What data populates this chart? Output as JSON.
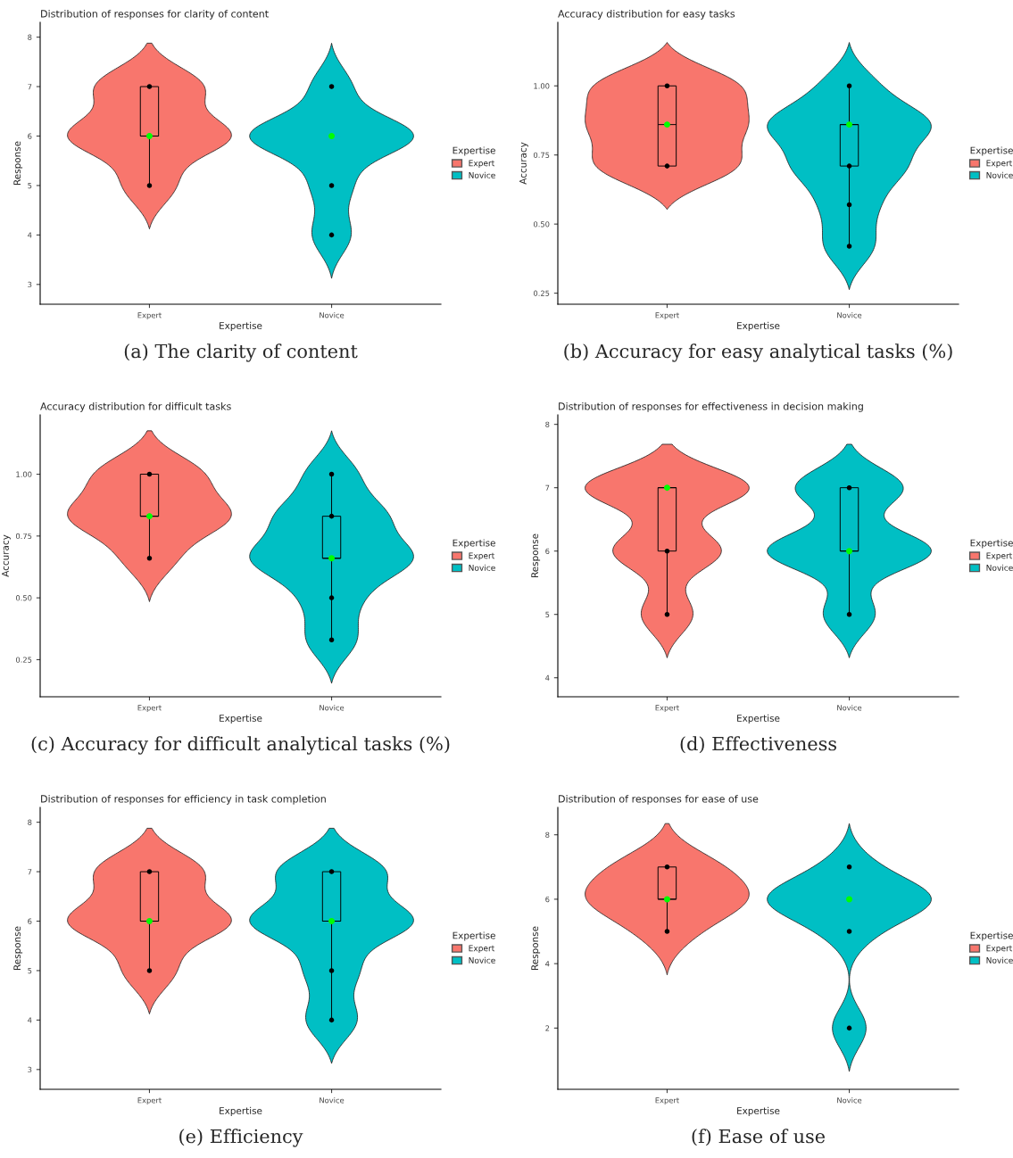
{
  "chart_data": [
    {
      "type": "box",
      "title": "Distribution of responses for clarity of content",
      "xlabel": "Expertise",
      "ylabel": "Response",
      "legend_title": "Expertise",
      "legend": "right",
      "categories": [
        "Expert",
        "Novice"
      ],
      "ylim": [
        2.6,
        8.3
      ],
      "yticks": [
        3,
        4,
        5,
        6,
        7,
        8
      ],
      "series": [
        {
          "name": "Expert",
          "color": "#f8766d",
          "boxes": [
            {
              "low": 5,
              "q1": 6,
              "median": 6,
              "q3": 7,
              "high": 7,
              "mean": 6
            },
            null
          ]
        },
        {
          "name": "Novice",
          "color": "#00bfc4",
          "boxes": [
            null,
            {
              "low": 6,
              "q1": 6,
              "median": 6,
              "q3": 6,
              "high": 6,
              "mean": 6
            }
          ]
        },
        {
          "type": "scatter",
          "color": "#000000",
          "x": [
            "Expert",
            "Expert",
            "Novice",
            "Novice",
            "Novice"
          ],
          "values": [
            5,
            7,
            4,
            5,
            7
          ]
        }
      ],
      "annotations": [
        "(a) The clarity of content"
      ]
    },
    {
      "type": "box",
      "title": "Accuracy distribution for easy tasks",
      "xlabel": "Expertise",
      "ylabel": "Accuracy",
      "legend_title": "Expertise",
      "legend": "right",
      "categories": [
        "Expert",
        "Novice"
      ],
      "ylim": [
        0.21,
        1.23
      ],
      "yticks": [
        {
          "value": 0.25,
          "label": "0.25"
        },
        {
          "value": 0.5,
          "label": "0.50"
        },
        {
          "value": 0.75,
          "label": "0.75"
        },
        {
          "value": 1.0,
          "label": "1.00"
        }
      ],
      "series": [
        {
          "name": "Expert",
          "color": "#f8766d",
          "boxes": [
            {
              "low": 0.71,
              "q1": 0.71,
              "median": 0.86,
              "q3": 1.0,
              "high": 1.0,
              "mean": 0.86
            },
            null
          ]
        },
        {
          "name": "Novice",
          "color": "#00bfc4",
          "boxes": [
            null,
            {
              "low": 0.42,
              "q1": 0.71,
              "median": 0.86,
              "q3": 0.86,
              "high": 1.0,
              "mean": 0.86
            }
          ]
        },
        {
          "type": "scatter",
          "color": "#000000",
          "x": [
            "Expert",
            "Expert",
            "Novice",
            "Novice",
            "Novice",
            "Novice"
          ],
          "values": [
            0.71,
            1.0,
            0.42,
            0.57,
            0.71,
            1.0
          ]
        }
      ],
      "annotations": [
        "(b) Accuracy for easy analytical tasks (%)"
      ]
    },
    {
      "type": "box",
      "title": "Accuracy distribution for difficult tasks",
      "xlabel": "Expertise",
      "ylabel": "Accuracy",
      "legend_title": "Expertise",
      "legend": "right",
      "categories": [
        "Expert",
        "Novice"
      ],
      "ylim": [
        0.1,
        1.24
      ],
      "yticks": [
        {
          "value": 0.25,
          "label": "0.25"
        },
        {
          "value": 0.5,
          "label": "0.50"
        },
        {
          "value": 0.75,
          "label": "0.75"
        },
        {
          "value": 1.0,
          "label": "1.00"
        }
      ],
      "series": [
        {
          "name": "Expert",
          "color": "#f8766d",
          "boxes": [
            {
              "low": 0.66,
              "q1": 0.83,
              "median": 0.83,
              "q3": 1.0,
              "high": 1.0,
              "mean": 0.83
            },
            null
          ]
        },
        {
          "name": "Novice",
          "color": "#00bfc4",
          "boxes": [
            null,
            {
              "low": 0.33,
              "q1": 0.66,
              "median": 0.66,
              "q3": 0.83,
              "high": 1.0,
              "mean": 0.66
            }
          ]
        },
        {
          "type": "scatter",
          "color": "#000000",
          "x": [
            "Expert",
            "Expert",
            "Novice",
            "Novice",
            "Novice",
            "Novice"
          ],
          "values": [
            0.66,
            1.0,
            0.33,
            0.5,
            0.83,
            1.0
          ]
        }
      ],
      "annotations": [
        "(c) Accuracy for difficult analytical tasks (%)"
      ]
    },
    {
      "type": "box",
      "title": "Distribution of responses for effectiveness in decision making",
      "xlabel": "Expertise",
      "ylabel": "Response",
      "legend_title": "Expertise",
      "legend": "right",
      "categories": [
        "Expert",
        "Novice"
      ],
      "ylim": [
        3.7,
        8.15
      ],
      "yticks": [
        4,
        5,
        6,
        7,
        8
      ],
      "series": [
        {
          "name": "Expert",
          "color": "#f8766d",
          "boxes": [
            {
              "low": 5,
              "q1": 6,
              "median": 7,
              "q3": 7,
              "high": 7,
              "mean": 7
            },
            null
          ]
        },
        {
          "name": "Novice",
          "color": "#00bfc4",
          "boxes": [
            null,
            {
              "low": 5,
              "q1": 6,
              "median": 6,
              "q3": 7,
              "high": 7,
              "mean": 6
            }
          ]
        },
        {
          "type": "scatter",
          "color": "#000000",
          "x": [
            "Expert",
            "Expert",
            "Novice",
            "Novice"
          ],
          "values": [
            5,
            6,
            5,
            7
          ]
        }
      ],
      "annotations": [
        "(d) Effectiveness"
      ]
    },
    {
      "type": "box",
      "title": "Distribution of responses for efficiency in task completion",
      "xlabel": "Expertise",
      "ylabel": "Response",
      "legend_title": "Expertise",
      "legend": "right",
      "categories": [
        "Expert",
        "Novice"
      ],
      "ylim": [
        2.6,
        8.3
      ],
      "yticks": [
        3,
        4,
        5,
        6,
        7,
        8
      ],
      "series": [
        {
          "name": "Expert",
          "color": "#f8766d",
          "boxes": [
            {
              "low": 5,
              "q1": 6,
              "median": 6,
              "q3": 7,
              "high": 7,
              "mean": 6
            },
            null
          ]
        },
        {
          "name": "Novice",
          "color": "#00bfc4",
          "boxes": [
            null,
            {
              "low": 4,
              "q1": 6,
              "median": 6,
              "q3": 7,
              "high": 7,
              "mean": 6
            }
          ]
        },
        {
          "type": "scatter",
          "color": "#000000",
          "x": [
            "Expert",
            "Expert",
            "Novice",
            "Novice",
            "Novice"
          ],
          "values": [
            5,
            7,
            4,
            5,
            7
          ]
        }
      ],
      "annotations": [
        "(e) Efficiency"
      ]
    },
    {
      "type": "box",
      "title": "Distribution of responses for ease of use",
      "xlabel": "Expertise",
      "ylabel": "Response",
      "legend_title": "Expertise",
      "legend": "right",
      "categories": [
        "Expert",
        "Novice"
      ],
      "ylim": [
        0.1,
        8.85
      ],
      "yticks": [
        2,
        4,
        6,
        8
      ],
      "series": [
        {
          "name": "Expert",
          "color": "#f8766d",
          "boxes": [
            {
              "low": 5,
              "q1": 6,
              "median": 6,
              "q3": 7,
              "high": 7,
              "mean": 6
            },
            null
          ]
        },
        {
          "name": "Novice",
          "color": "#00bfc4",
          "boxes": [
            null,
            {
              "low": 6,
              "q1": 6,
              "median": 6,
              "q3": 6,
              "high": 6,
              "mean": 6
            }
          ]
        },
        {
          "type": "scatter",
          "color": "#000000",
          "x": [
            "Expert",
            "Expert",
            "Novice",
            "Novice",
            "Novice"
          ],
          "values": [
            5,
            7,
            2,
            5,
            7
          ]
        }
      ],
      "annotations": [
        "(f) Ease of use"
      ]
    }
  ]
}
